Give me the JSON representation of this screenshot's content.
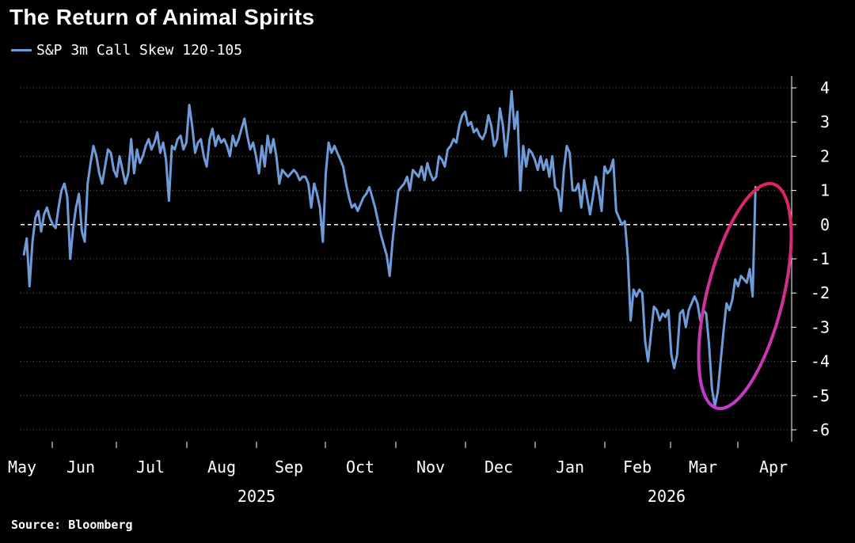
{
  "chart_data": {
    "type": "line",
    "title": "The Return of Animal Spirits",
    "source": "Source: Bloomberg",
    "ylim": [
      -6,
      4
    ],
    "y_ticks": [
      "4",
      "3",
      "2",
      "1",
      "0",
      "-1",
      "-2",
      "-3",
      "-4",
      "-5",
      "-6"
    ],
    "x_ticks": [
      "May",
      "Jun",
      "Jul",
      "Aug",
      "Sep",
      "Oct",
      "Nov",
      "Dec",
      "Jan",
      "Feb",
      "Mar",
      "Apr"
    ],
    "years": [
      "2025",
      "2026"
    ],
    "grid": true,
    "reference_line": 0,
    "colors": {
      "series": "#6f9bd8",
      "highlight": [
        "#e0245e",
        "#c23ccf"
      ],
      "grid": "#666666"
    },
    "series": [
      {
        "name": "S&P 3m Call Skew 120-105",
        "values": [
          -0.9,
          -0.4,
          -1.8,
          -0.5,
          0.2,
          0.4,
          -0.2,
          0.3,
          0.5,
          0.2,
          0.0,
          -0.1,
          0.5,
          1.0,
          1.2,
          0.8,
          -1.0,
          -0.1,
          0.5,
          0.9,
          -0.2,
          -0.5,
          1.2,
          1.8,
          2.3,
          2.0,
          1.5,
          1.2,
          1.7,
          2.2,
          2.1,
          1.6,
          1.4,
          2.0,
          1.6,
          1.2,
          1.5,
          2.5,
          1.5,
          2.2,
          1.8,
          2.0,
          2.3,
          2.5,
          2.2,
          2.4,
          2.7,
          2.1,
          2.4,
          1.9,
          0.7,
          2.3,
          2.2,
          2.5,
          2.6,
          2.2,
          2.4,
          3.5,
          2.9,
          2.1,
          2.4,
          2.5,
          2.0,
          1.7,
          2.5,
          2.8,
          2.3,
          2.6,
          2.4,
          2.5,
          2.3,
          2.0,
          2.6,
          2.3,
          2.5,
          2.8,
          3.1,
          2.6,
          2.2,
          2.4,
          2.0,
          1.5,
          2.3,
          1.7,
          2.6,
          2.1,
          2.5,
          2.0,
          1.2,
          1.6,
          1.5,
          1.4,
          1.5,
          1.6,
          1.5,
          1.3,
          1.4,
          1.4,
          1.2,
          0.5,
          1.2,
          0.9,
          0.5,
          -0.5,
          1.5,
          2.4,
          2.1,
          2.3,
          2.1,
          1.9,
          1.7,
          1.2,
          0.8,
          0.5,
          0.6,
          0.4,
          0.6,
          0.8,
          0.9,
          1.1,
          0.8,
          0.5,
          0.1,
          -0.3,
          -0.6,
          -0.9,
          -1.5,
          -0.5,
          0.3,
          1.0,
          1.1,
          1.2,
          1.4,
          1.0,
          1.6,
          1.5,
          1.4,
          1.7,
          1.3,
          1.8,
          1.5,
          1.3,
          1.4,
          2.0,
          1.9,
          1.7,
          2.2,
          2.3,
          2.5,
          2.4,
          2.9,
          3.2,
          3.3,
          2.9,
          3.0,
          2.7,
          2.8,
          2.6,
          2.5,
          2.7,
          3.2,
          2.9,
          2.3,
          2.5,
          3.4,
          2.9,
          2.0,
          2.8,
          3.9,
          2.8,
          3.3,
          1.0,
          2.3,
          1.7,
          2.2,
          2.1,
          1.9,
          1.6,
          2.0,
          1.6,
          1.9,
          1.4,
          2.0,
          1.1,
          1.0,
          0.4,
          1.6,
          2.3,
          2.1,
          1.0,
          1.0,
          1.2,
          0.5,
          1.3,
          0.8,
          0.3,
          0.8,
          1.4,
          1.0,
          0.4,
          1.7,
          1.5,
          1.6,
          1.9,
          0.4,
          0.2,
          0.0,
          0.1,
          -0.9,
          -2.8,
          -1.9,
          -2.1,
          -1.9,
          -2.0,
          -3.4,
          -4.0,
          -3.2,
          -2.4,
          -2.5,
          -2.8,
          -2.6,
          -2.7,
          -2.5,
          -3.8,
          -4.2,
          -3.8,
          -2.6,
          -2.5,
          -3.0,
          -2.5,
          -2.3,
          -2.1,
          -2.3,
          -2.8,
          -2.5,
          -2.6,
          -3.5,
          -4.8,
          -5.3,
          -4.9,
          -4.0,
          -3.1,
          -2.3,
          -2.5,
          -2.2,
          -1.6,
          -1.8,
          -1.5,
          -1.6,
          -1.7,
          -1.3,
          -2.1,
          1.1,
          1.0
        ]
      }
    ]
  }
}
